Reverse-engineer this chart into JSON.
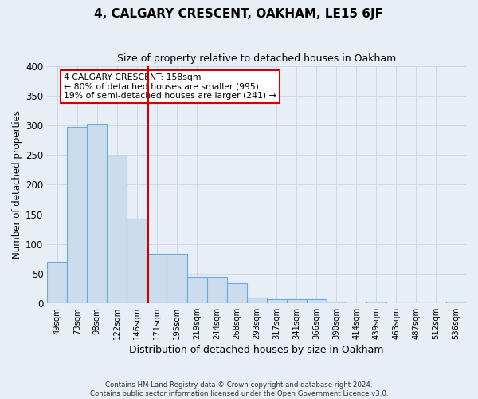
{
  "title": "4, CALGARY CRESCENT, OAKHAM, LE15 6JF",
  "subtitle": "Size of property relative to detached houses in Oakham",
  "xlabel": "Distribution of detached houses by size in Oakham",
  "ylabel": "Number of detached properties",
  "footer_line1": "Contains HM Land Registry data © Crown copyright and database right 2024.",
  "footer_line2": "Contains public sector information licensed under the Open Government Licence v3.0.",
  "bin_labels": [
    "49sqm",
    "73sqm",
    "98sqm",
    "122sqm",
    "146sqm",
    "171sqm",
    "195sqm",
    "219sqm",
    "244sqm",
    "268sqm",
    "293sqm",
    "317sqm",
    "341sqm",
    "366sqm",
    "390sqm",
    "414sqm",
    "439sqm",
    "463sqm",
    "487sqm",
    "512sqm",
    "536sqm"
  ],
  "bar_heights": [
    70,
    297,
    302,
    249,
    143,
    83,
    83,
    44,
    44,
    33,
    9,
    6,
    6,
    6,
    2,
    0,
    3,
    0,
    0,
    0,
    2
  ],
  "bar_color": "#ccdcef",
  "bar_edgecolor": "#6aaad4",
  "vline_x": 4.55,
  "vline_color": "#cc0000",
  "ylim": [
    0,
    400
  ],
  "yticks": [
    0,
    50,
    100,
    150,
    200,
    250,
    300,
    350,
    400
  ],
  "annotation_text": "4 CALGARY CRESCENT: 158sqm\n← 80% of detached houses are smaller (995)\n19% of semi-detached houses are larger (241) →",
  "annotation_box_facecolor": "#ffffff",
  "annotation_box_edgecolor": "#cc0000",
  "grid_color": "#c8d4e4",
  "background_color": "#e8eef6"
}
